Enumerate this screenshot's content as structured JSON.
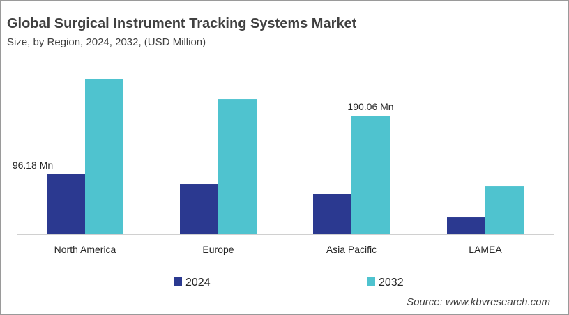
{
  "chart_data": {
    "type": "bar",
    "title": "Global Surgical Instrument Tracking Systems Market",
    "subtitle": "Size, by Region, 2024, 2032, (USD Million)",
    "categories": [
      "North America",
      "Europe",
      "Asia Pacific",
      "LAMEA"
    ],
    "series": [
      {
        "name": "2024",
        "color": "#2b3990",
        "values": [
          96.18,
          80.5,
          64.8,
          26.8
        ]
      },
      {
        "name": "2032",
        "color": "#4fc3cf",
        "values": [
          249.4,
          216.9,
          190.06,
          77.1
        ]
      }
    ],
    "data_labels": [
      {
        "series": 0,
        "category": 0,
        "text": "96.18 Mn"
      },
      {
        "series": 1,
        "category": 2,
        "text": "190.06 Mn"
      }
    ],
    "ylim": [
      0,
      260
    ],
    "grid": false,
    "legend": "bottom",
    "source": "Source: www.kbvresearch.com"
  }
}
